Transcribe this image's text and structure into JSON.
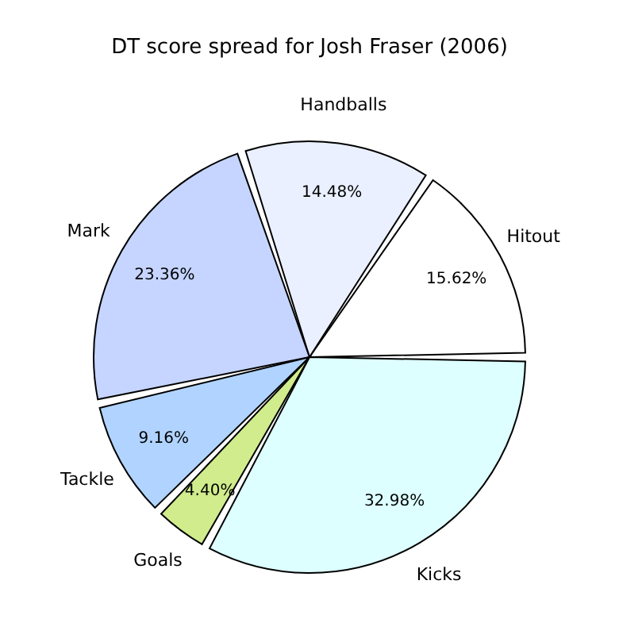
{
  "chart_data": {
    "type": "pie",
    "title": "DT score spread for Josh Fraser (2006)",
    "categories": [
      "Hitout",
      "Handballs",
      "Mark",
      "Tackle",
      "Goals",
      "Kicks"
    ],
    "values": [
      15.62,
      14.48,
      23.36,
      9.16,
      4.4,
      32.98
    ],
    "value_labels": [
      "15.62%",
      "14.48%",
      "23.36%",
      "9.16%",
      "4.40%",
      "32.98%"
    ],
    "colors": [
      "#ffffff",
      "#eaf0ff",
      "#c5d5ff",
      "#b0d4ff",
      "#d0ec8c",
      "#ddffff"
    ]
  }
}
